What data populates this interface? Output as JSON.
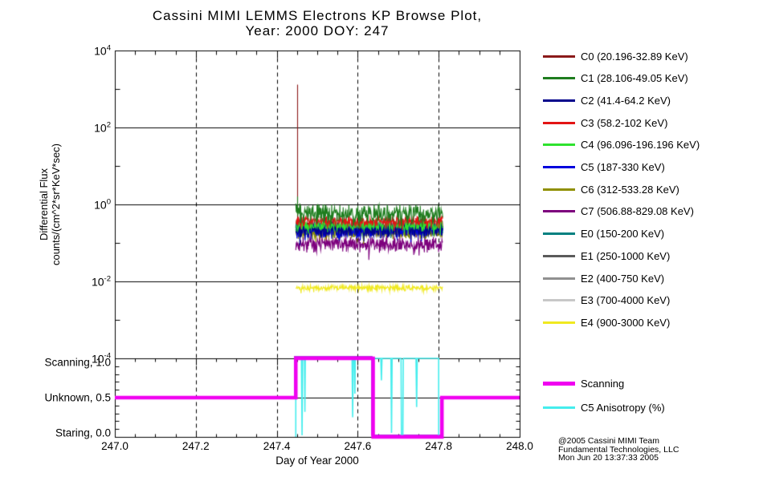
{
  "title": {
    "line1": "Cassini MIMI LEMMS Electrons KP Browse Plot,",
    "line2": "Year: 2000 DOY: 247"
  },
  "axes": {
    "y_label_line1": "Differential Flux",
    "y_label_line2": "counts/(cm^2*sr*KeV*sec)",
    "x_label": "Day of Year 2000"
  },
  "credit": {
    "line1": "@2005 Cassini MIMI Team",
    "line2": "Fundamental Technologies, LLC",
    "line3": "Mon Jun 20 13:37:33 2005"
  },
  "chart_data": [
    {
      "type": "line",
      "title": "Cassini MIMI LEMMS Electrons KP Browse Plot, Year: 2000 DOY: 247",
      "xlabel": "Day of Year 2000",
      "ylabel": "Differential Flux counts/(cm^2*sr*KeV*sec)",
      "xlim": [
        247.0,
        248.0
      ],
      "ylog": true,
      "ylim": [
        0.0001,
        10000
      ],
      "y_tick_exponents": [
        4,
        2,
        0,
        -2,
        -4
      ],
      "x_tick_labels": [
        "247.0",
        "247.2",
        "247.4",
        "247.6",
        "247.8",
        "248.0"
      ],
      "x_major_step": 0.2,
      "x_minor_step": 0.05,
      "grid": {
        "h_solid_exponents": [
          2,
          0,
          -2
        ],
        "v_dashed_x": [
          247.2,
          247.4,
          247.6,
          247.8
        ]
      },
      "data_start": 247.447,
      "data_end": 247.81,
      "series": [
        {
          "name": "C0 (20.196-32.89 KeV)",
          "color": "#8b1a1a",
          "base": 0.28,
          "noise_dex": 0.15,
          "z": 3,
          "spike": {
            "x": 247.451,
            "peak": 1300
          }
        },
        {
          "name": "C1 (28.106-49.05 KeV)",
          "color": "#1e7d1e",
          "base": 0.58,
          "noise_dex": 0.17,
          "z": 11,
          "spike": {
            "x": 247.451,
            "peak": 1.6
          }
        },
        {
          "name": "C2 (41.4-64.2 KeV)",
          "color": "#00008b",
          "base": 0.23,
          "noise_dex": 0.14,
          "z": 8
        },
        {
          "name": "C3 (58.2-102 KeV)",
          "color": "#e31414",
          "base": 0.37,
          "noise_dex": 0.09,
          "z": 10
        },
        {
          "name": "C4 (96.096-196.196 KeV)",
          "color": "#2ee22e",
          "base": 0.29,
          "noise_dex": 0.1,
          "z": 9
        },
        {
          "name": "C5 (187-330 KeV)",
          "color": "#0000dd",
          "base": 0.21,
          "noise_dex": 0.14,
          "z": 7
        },
        {
          "name": "C6 (312-533.28 KeV)",
          "color": "#8f8f00",
          "base": 0.19,
          "noise_dex": 0.11,
          "z": 6
        },
        {
          "name": "C7 (506.88-829.08 KeV)",
          "color": "#7d007d",
          "base": 0.09,
          "noise_dex": 0.14,
          "z": 5
        },
        {
          "name": "E0 (150-200 KeV)",
          "color": "#008080",
          "base": 0.22,
          "noise_dex": 0.1,
          "z": 4
        },
        {
          "name": "E1 (250-1000 KeV)",
          "color": "#5a5a5a",
          "base": 0.24,
          "noise_dex": 0.1,
          "z": 2
        },
        {
          "name": "E2 (400-750 KeV)",
          "color": "#909090",
          "base": 0.22,
          "noise_dex": 0.08,
          "z": 1
        },
        {
          "name": "E3 (700-4000 KeV)",
          "color": "#c8c8c8",
          "base": 0.2,
          "noise_dex": 0.08,
          "z": 0
        },
        {
          "name": "E4 (900-3000 KeV)",
          "color": "#f0e920",
          "base": 0.0068,
          "noise_dex": 0.05,
          "z": 12
        }
      ]
    },
    {
      "type": "line",
      "xlim": [
        247.0,
        248.0
      ],
      "ylim": [
        0.0,
        1.0
      ],
      "y_ticks": [
        {
          "label": "Scanning, 1.0",
          "value": 1.0
        },
        {
          "label": "Unknown, 0.5",
          "value": 0.5
        },
        {
          "label": "Staring, 0.0",
          "value": 0.0
        }
      ],
      "y_minor_step": 0.1,
      "grid": {
        "h_solid_values": [
          0.5
        ],
        "v_dashed_x": [
          247.2,
          247.4,
          247.6,
          247.8
        ]
      },
      "scanning": {
        "label": "Scanning",
        "color": "#f000f0",
        "outline_color": "#9400d3",
        "steps": [
          [
            247.0,
            0.5
          ],
          [
            247.447,
            0.5
          ],
          [
            247.447,
            1.0
          ],
          [
            247.638,
            1.0
          ],
          [
            247.638,
            0.0
          ],
          [
            247.808,
            0.0
          ],
          [
            247.808,
            0.5
          ],
          [
            248.0,
            0.5
          ]
        ]
      },
      "anisotropy": {
        "label": "C5 Anisotropy (%)",
        "color": "#45eded",
        "points": [
          [
            247.447,
            0.0
          ],
          [
            247.447,
            1.0
          ],
          [
            247.461,
            1.0
          ],
          [
            247.4625,
            0.02
          ],
          [
            247.464,
            1.0
          ],
          [
            247.4685,
            1.0
          ],
          [
            247.4695,
            0.32
          ],
          [
            247.4705,
            1.0
          ],
          [
            247.586,
            1.0
          ],
          [
            247.5875,
            0.25
          ],
          [
            247.589,
            1.0
          ],
          [
            247.592,
            1.0
          ],
          [
            247.593,
            0.55
          ],
          [
            247.594,
            1.0
          ],
          [
            247.636,
            1.0
          ],
          [
            247.637,
            0.05
          ],
          [
            247.639,
            0.05
          ],
          [
            247.64,
            1.0
          ],
          [
            247.657,
            1.0
          ],
          [
            247.6585,
            0.72
          ],
          [
            247.66,
            1.0
          ],
          [
            247.682,
            1.0
          ],
          [
            247.6835,
            0.05
          ],
          [
            247.685,
            1.0
          ],
          [
            247.707,
            1.0
          ],
          [
            247.708,
            0.0
          ],
          [
            247.7115,
            0.0
          ],
          [
            247.7125,
            1.0
          ],
          [
            247.744,
            1.0
          ],
          [
            247.7455,
            0.38
          ],
          [
            247.747,
            1.0
          ],
          [
            247.8,
            1.0
          ],
          [
            247.8,
            0.0
          ]
        ]
      }
    }
  ]
}
